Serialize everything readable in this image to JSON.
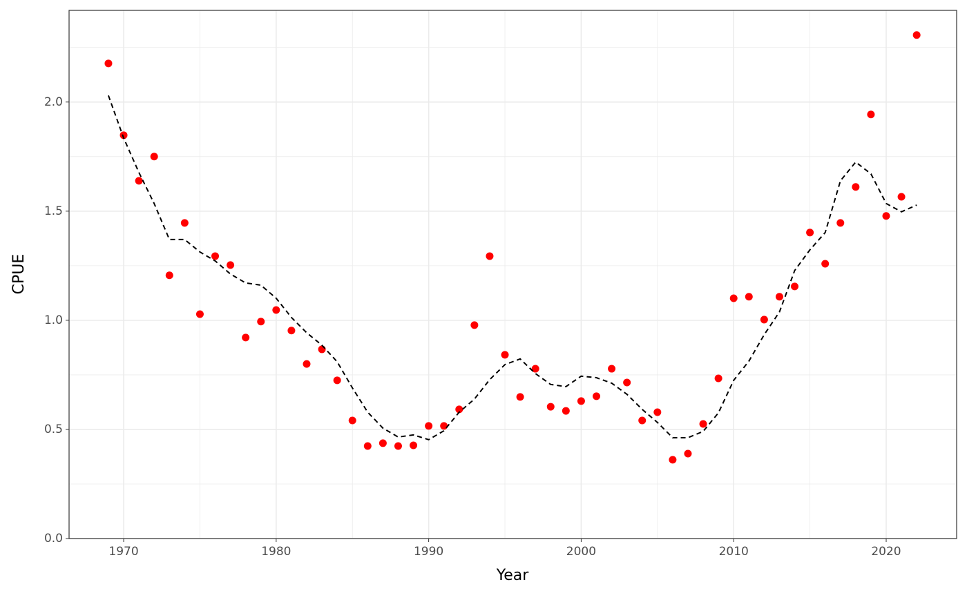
{
  "chart_data": {
    "type": "scatter",
    "x_label": "Year",
    "y_label": "CPUE",
    "x": [
      1969,
      1970,
      1971,
      1972,
      1973,
      1974,
      1975,
      1976,
      1977,
      1978,
      1979,
      1980,
      1981,
      1982,
      1983,
      1984,
      1985,
      1986,
      1987,
      1988,
      1989,
      1990,
      1991,
      1992,
      1993,
      1994,
      1995,
      1996,
      1997,
      1998,
      1999,
      2000,
      2001,
      2002,
      2003,
      2004,
      2005,
      2006,
      2007,
      2008,
      2009,
      2010,
      2011,
      2012,
      2013,
      2014,
      2015,
      2016,
      2017,
      2018,
      2019,
      2020,
      2021,
      2022
    ],
    "series": [
      {
        "type": "scatter",
        "color": "#ff0000",
        "values": [
          2.177,
          1.848,
          1.639,
          1.75,
          1.206,
          1.446,
          1.028,
          1.294,
          1.253,
          0.921,
          0.994,
          1.047,
          0.953,
          0.8,
          0.867,
          0.725,
          0.541,
          0.424,
          0.437,
          0.424,
          0.427,
          0.516,
          0.516,
          0.592,
          0.978,
          1.294,
          0.842,
          0.649,
          0.778,
          0.604,
          0.585,
          0.63,
          0.652,
          0.778,
          0.715,
          0.541,
          0.579,
          0.361,
          0.389,
          0.525,
          0.734,
          1.101,
          1.108,
          1.003,
          1.108,
          1.155,
          1.402,
          1.259,
          1.446,
          1.611,
          1.943,
          1.478,
          1.566,
          2.307
        ]
      },
      {
        "type": "line",
        "color": "#000000",
        "dash": "dashed",
        "values": [
          2.03,
          1.835,
          1.677,
          1.535,
          1.37,
          1.37,
          1.313,
          1.272,
          1.212,
          1.171,
          1.161,
          1.101,
          1.013,
          0.943,
          0.886,
          0.81,
          0.69,
          0.579,
          0.506,
          0.465,
          0.475,
          0.453,
          0.494,
          0.579,
          0.639,
          0.728,
          0.797,
          0.823,
          0.756,
          0.706,
          0.696,
          0.744,
          0.737,
          0.712,
          0.661,
          0.592,
          0.532,
          0.462,
          0.462,
          0.491,
          0.576,
          0.725,
          0.813,
          0.934,
          1.038,
          1.228,
          1.323,
          1.402,
          1.639,
          1.725,
          1.671,
          1.535,
          1.497,
          1.528
        ]
      }
    ],
    "xlim": [
      1966.42,
      2024.62
    ],
    "ylim": [
      0,
      2.42
    ],
    "xticks": [
      1970,
      1980,
      1990,
      2000,
      2010,
      2020
    ],
    "minor_xticks": [
      1975,
      1985,
      1995,
      2005,
      2015
    ],
    "yticks": [
      {
        "value": 0,
        "label": "0.0"
      },
      {
        "value": 0.5,
        "label": "0.5"
      },
      {
        "value": 1,
        "label": "1.0"
      },
      {
        "value": 1.5,
        "label": "1.5"
      },
      {
        "value": 2,
        "label": "2.0"
      }
    ],
    "minor_yticks": [
      0.25,
      0.75,
      1.25,
      1.75,
      2.25
    ],
    "grid": true
  }
}
